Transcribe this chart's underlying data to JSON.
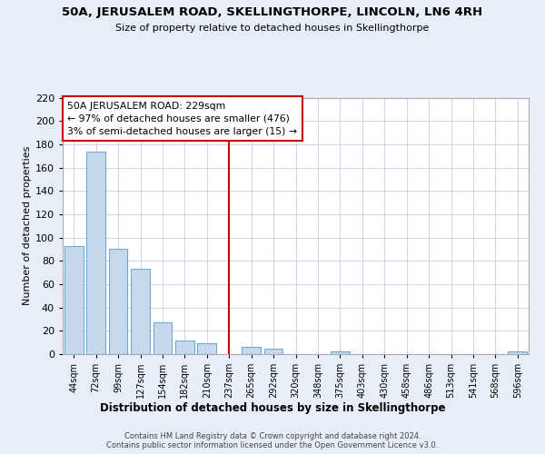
{
  "title": "50A, JERUSALEM ROAD, SKELLINGTHORPE, LINCOLN, LN6 4RH",
  "subtitle": "Size of property relative to detached houses in Skellingthorpe",
  "xlabel": "Distribution of detached houses by size in Skellingthorpe",
  "ylabel": "Number of detached properties",
  "bin_labels": [
    "44sqm",
    "72sqm",
    "99sqm",
    "127sqm",
    "154sqm",
    "182sqm",
    "210sqm",
    "237sqm",
    "265sqm",
    "292sqm",
    "320sqm",
    "348sqm",
    "375sqm",
    "403sqm",
    "430sqm",
    "458sqm",
    "486sqm",
    "513sqm",
    "541sqm",
    "568sqm",
    "596sqm"
  ],
  "bar_heights": [
    93,
    174,
    90,
    73,
    27,
    12,
    9,
    0,
    6,
    5,
    0,
    0,
    2,
    0,
    0,
    0,
    0,
    0,
    0,
    0,
    2
  ],
  "bar_color": "#c8d8ec",
  "bar_edgecolor": "#6aaad4",
  "vline_color": "#cc0000",
  "annotation_text": "50A JERUSALEM ROAD: 229sqm\n← 97% of detached houses are smaller (476)\n3% of semi-detached houses are larger (15) →",
  "annotation_box_color": "white",
  "annotation_box_edgecolor": "#cc0000",
  "ylim": [
    0,
    220
  ],
  "yticks": [
    0,
    20,
    40,
    60,
    80,
    100,
    120,
    140,
    160,
    180,
    200,
    220
  ],
  "footer": "Contains HM Land Registry data © Crown copyright and database right 2024.\nContains public sector information licensed under the Open Government Licence v3.0.",
  "background_color": "#e8eef8",
  "plot_background": "white",
  "grid_color": "#c5cfe0"
}
